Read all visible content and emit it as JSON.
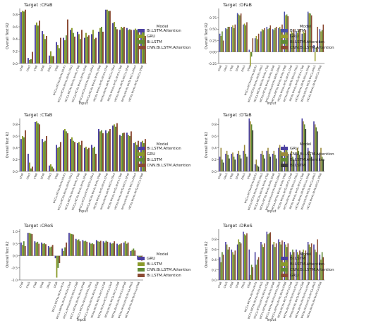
{
  "colors": {
    "c_bilstm_att": "#4a3fa0",
    "c_gru": "#8a9a2a",
    "c_bilstm": "#5f8a35",
    "c_cnn": "#8b4a33",
    "c_bilstm_dfab": "#4a50a8",
    "c_gru_dfab": "#9aa030",
    "c_cnn_dtab": "#9a8a3a",
    "c_att_dtab": "#5f8a35",
    "c_bilstm_dtab": "#3a3a3a"
  },
  "chart_data": [
    {
      "type": "bar",
      "title": "Target :CFaB",
      "ylabel": "Overall Test R2",
      "xlabel": "Input",
      "ylim": [
        0,
        0.9
      ],
      "yticks": [
        "0.0",
        "0.2",
        "0.4",
        "0.6",
        "0.8"
      ],
      "ytick_vals": [
        0.0,
        0.2,
        0.4,
        0.6,
        0.8
      ],
      "legend_title": "Model",
      "categories": [
        "CFaB",
        "CRoS",
        "CTaB",
        "DFaB",
        "DRoS",
        "DTaB",
        "WCCa,WCHa,WcHo,WcRs",
        "WCCa,WCHa,WcHo,WcRs,CRoS",
        "WCCa,WCHa,WcHo,WcRs,CTaB",
        "WCCa,WCHa,WcHo,WcRs,DFaB",
        "WCCa,WCHa,WcHo,WcRs,DRoS",
        "WCCa,WCHa,WcHo,WcRs,DTaB",
        "WCHa,WcHo,WcTa,WcCa,CFaB",
        "WCHa,WcHo,WcTa,WcCa,CRoS",
        "WCHa,WcHo,WcTa,WcCa,CTaB",
        "WCHa,WcHo,WcTa,WcCa,DFaB",
        "WCHa,WcHo,WcTa,WcCa,DRoS",
        "WCHa,WcHo,WcTa,WcCa,DTaB"
      ],
      "series": [
        {
          "name": "Bi.LSTM.Attention",
          "color": "#4a3fa0",
          "values": [
            0.84,
            0.09,
            0.63,
            0.53,
            0.13,
            0.35,
            0.42,
            0.55,
            0.52,
            0.42,
            0.48,
            0.52,
            0.88,
            0.66,
            0.55,
            0.58,
            0.55,
            0.55
          ]
        },
        {
          "name": "GRU",
          "color": "#8a9a2a",
          "values": [
            0.86,
            0.06,
            0.67,
            0.48,
            0.2,
            0.3,
            0.38,
            0.58,
            0.48,
            0.5,
            0.55,
            0.58,
            0.88,
            0.68,
            0.6,
            0.55,
            0.57,
            0.52
          ]
        },
        {
          "name": "Bi.LSTM",
          "color": "#5f8a35",
          "values": [
            0.85,
            0.07,
            0.62,
            0.4,
            0.12,
            0.25,
            0.46,
            0.5,
            0.4,
            0.44,
            0.4,
            0.6,
            0.86,
            0.6,
            0.58,
            0.56,
            0.55,
            0.52
          ]
        },
        {
          "name": "CNN.Bi.LSTM.Attention",
          "color": "#8b4a33",
          "values": [
            0.88,
            0.19,
            0.7,
            0.45,
            0.12,
            0.42,
            0.72,
            0.44,
            0.55,
            0.46,
            0.42,
            0.52,
            0.86,
            0.56,
            0.6,
            0.55,
            0.52,
            0.45
          ]
        }
      ]
    },
    {
      "type": "bar",
      "title": "Target :DFaB",
      "ylabel": "Overall Test R2",
      "xlabel": "Input",
      "ylim": [
        -0.25,
        0.95
      ],
      "yticks": [
        "-0.25",
        "0.00",
        "0.25",
        "0.50",
        "0.75"
      ],
      "ytick_vals": [
        -0.25,
        0.0,
        0.25,
        0.5,
        0.75
      ],
      "legend_title": "Model",
      "categories": [
        "CFaB",
        "CRoS",
        "CTaB",
        "DFaB",
        "DRoS",
        "DTaB",
        "WCCa,WCHa,WcHo,WcRs",
        "WCCa,WCHa,WcHo,WcRs,CRoS",
        "WCCa,WCHa,WcHo,WcRs,CTaB",
        "WCCa,WCHa,WcHo,WcRs,DFaB",
        "WCCa,WCHa,WcHo,WcRs,DRoS",
        "WCCa,WCHa,WcHo,WcRs,DTaB",
        "WCHa,WcHo,WcTa,WcCa,CFaB",
        "WCHa,WcHo,WcTa,WcCa,CRoS",
        "WCHa,WcHo,WcTa,WcCa,CTaB",
        "WCHa,WcHo,WcTa,WcCa,DFaB",
        "WCHa,WcHo,WcTa,WcCa,DRoS",
        "WCHa,WcHo,WcTa,WcCa,DTaB"
      ],
      "series": [
        {
          "name": "Bi.LSTM",
          "color": "#4a50a8",
          "values": [
            0.4,
            0.52,
            0.55,
            0.85,
            0.6,
            0.05,
            0.3,
            0.45,
            0.55,
            0.5,
            0.52,
            0.88,
            0.4,
            0.45,
            0.4,
            0.88,
            0.15,
            0.5
          ]
        },
        {
          "name": "GRU",
          "color": "#9aa030",
          "values": [
            0.35,
            0.5,
            0.58,
            0.82,
            0.62,
            -0.3,
            0.35,
            0.5,
            0.5,
            0.48,
            0.55,
            0.8,
            0.45,
            0.42,
            0.45,
            0.85,
            -0.2,
            0.45
          ]
        },
        {
          "name": "Bi.LSTM.Attention",
          "color": "#5f8a35",
          "values": [
            0.45,
            0.55,
            0.52,
            0.8,
            0.58,
            -0.1,
            0.28,
            0.48,
            0.52,
            0.52,
            0.5,
            0.82,
            0.42,
            0.48,
            0.42,
            0.84,
            0.1,
            0.48
          ]
        },
        {
          "name": "CNN.Bi.LSTM.Attention",
          "color": "#8b4a33",
          "values": [
            0.25,
            0.55,
            0.6,
            0.84,
            0.65,
            0.3,
            0.4,
            0.52,
            0.58,
            0.55,
            0.6,
            0.78,
            0.5,
            0.5,
            0.48,
            0.8,
            0.55,
            0.6
          ]
        }
      ]
    },
    {
      "type": "bar",
      "title": "Target :CTaB",
      "ylabel": "Overall Test R2",
      "xlabel": "Input",
      "ylim": [
        0,
        0.9
      ],
      "yticks": [
        "0.0",
        "0.2",
        "0.4",
        "0.6",
        "0.8"
      ],
      "ytick_vals": [
        0.0,
        0.2,
        0.4,
        0.6,
        0.8
      ],
      "legend_title": "Model",
      "categories": [
        "CFaB",
        "CRoS",
        "CTaB",
        "DFaB",
        "DRoS",
        "DTaB",
        "WCCa,WCHa,WcHo,WcRs",
        "WCCa,WCHa,WcHo,WcRs,CRoS",
        "WCCa,WCHa,WcHo,WcRs,CTaB",
        "WCCa,WCHa,WcHo,WcRs,DFaB",
        "WCCa,WCHa,WcHo,WcRs,DRoS",
        "WCCa,WCHa,WcHo,WcRs,DTaB",
        "WCHa,WcHo,WcTa,WcCa,CFaB",
        "WCHa,WcHo,WcTa,WcCa,CRoS",
        "WCHa,WcHo,WcTa,WcCa,CTaB",
        "WCHa,WcHo,WcTa,WcCa,DFaB",
        "WCHa,WcHo,WcTa,WcCa,DRoS",
        "WCHa,WcHo,WcTa,WcCa,DTaB"
      ],
      "series": [
        {
          "name": "Bi.LSTM.Attention",
          "color": "#4a3fa0",
          "values": [
            0.55,
            0.3,
            0.84,
            0.55,
            0.1,
            0.45,
            0.7,
            0.55,
            0.48,
            0.4,
            0.45,
            0.72,
            0.7,
            0.78,
            0.62,
            0.66,
            0.48,
            0.5
          ]
        },
        {
          "name": "GRU",
          "color": "#8a9a2a",
          "values": [
            0.6,
            0.15,
            0.85,
            0.5,
            0.12,
            0.4,
            0.72,
            0.58,
            0.5,
            0.42,
            0.4,
            0.68,
            0.65,
            0.8,
            0.6,
            0.62,
            0.5,
            0.52
          ]
        },
        {
          "name": "Bi.LSTM",
          "color": "#5f8a35",
          "values": [
            0.58,
            0.05,
            0.82,
            0.52,
            0.08,
            0.42,
            0.68,
            0.52,
            0.45,
            0.38,
            0.42,
            0.7,
            0.68,
            0.76,
            0.65,
            0.6,
            0.45,
            0.48
          ]
        },
        {
          "name": "CNN.Bi.LSTM.Attention",
          "color": "#8b4a33",
          "values": [
            0.7,
            0.08,
            0.8,
            0.6,
            0.05,
            0.5,
            0.65,
            0.5,
            0.52,
            0.4,
            0.3,
            0.65,
            0.72,
            0.82,
            0.66,
            0.68,
            0.52,
            0.55
          ]
        }
      ]
    },
    {
      "type": "bar",
      "title": "Target :DTaB",
      "ylabel": "Overall Test R2",
      "xlabel": "Input",
      "ylim": [
        0,
        0.9
      ],
      "yticks": [
        "0.0",
        "0.2",
        "0.4",
        "0.6",
        "0.8"
      ],
      "ytick_vals": [
        0.0,
        0.2,
        0.4,
        0.6,
        0.8
      ],
      "legend_title": "Model",
      "categories": [
        "CFaB",
        "CRoS",
        "CTaB",
        "DFaB",
        "DRoS",
        "DTaB",
        "WCCa,WCHa,WcHo,WcRs",
        "WCCa,WCHa,WcHo,WcRs,CRoS",
        "WCCa,WCHa,WcHo,WcRs,CTaB",
        "WCCa,WCHa,WcHo,WcRs,DFaB",
        "WCCa,WCHa,WcHo,WcRs,DRoS",
        "WCCa,WCHa,WcHo,WcRs,DTaB",
        "WCHa,WcHo,WcTa,WcCa,CFaB",
        "WCHa,WcHo,WcTa,WcCa,CRoS",
        "WCHa,WcHo,WcTa,WcCa,CTaB",
        "WCHa,WcHo,WcTa,WcCa,DFaB",
        "WCHa,WcHo,WcTa,WcCa,DRoS",
        "WCHa,WcHo,WcTa,WcCa,DTaB"
      ],
      "series": [
        {
          "name": "GRU",
          "color": "#4a3fa0",
          "values": [
            0.25,
            0.3,
            0.3,
            0.3,
            0.35,
            0.9,
            0.12,
            0.3,
            0.35,
            0.3,
            0.4,
            0.45,
            0.3,
            0.3,
            0.9,
            0.4,
            0.85,
            0.3
          ]
        },
        {
          "name": "CNN.Bi.LSTM.Attention",
          "color": "#9a8a3a",
          "values": [
            0.4,
            0.35,
            0.32,
            0.35,
            0.45,
            0.85,
            0.2,
            0.35,
            0.4,
            0.35,
            0.45,
            0.4,
            0.35,
            0.4,
            0.85,
            0.35,
            0.8,
            0.4
          ]
        },
        {
          "name": "Bi.LSTM.Attention",
          "color": "#5f8a35",
          "values": [
            0.2,
            0.28,
            0.25,
            0.28,
            0.3,
            0.8,
            0.1,
            0.28,
            0.3,
            0.28,
            0.35,
            0.38,
            0.25,
            0.35,
            0.8,
            0.3,
            0.75,
            0.25
          ]
        },
        {
          "name": "Bi.LSTM",
          "color": "#3a3a3a",
          "values": [
            0.15,
            0.22,
            0.2,
            0.22,
            0.25,
            0.7,
            0.08,
            0.22,
            0.25,
            0.22,
            0.3,
            0.3,
            0.2,
            0.28,
            0.72,
            0.25,
            0.68,
            0.2
          ]
        }
      ]
    },
    {
      "type": "bar",
      "title": "Target :CRoS",
      "ylabel": "Overall Test R2",
      "xlabel": "Input",
      "ylim": [
        -1.0,
        1.1
      ],
      "yticks": [
        "-1.0",
        "-0.5",
        "0.0",
        "0.5",
        "1.0"
      ],
      "ytick_vals": [
        -1.0,
        -0.5,
        0.0,
        0.5,
        1.0
      ],
      "legend_title": "Model",
      "categories": [
        "CFaB",
        "CRoS",
        "CTaB",
        "DFaB",
        "DRoS",
        "DTaB",
        "WCCa,WCHa,WcHo,WcRs",
        "WCCa,WCHa,WcHo,WcRs,CRoS",
        "WCCa,WCHa,WcHo,WcRs,CTaB",
        "WCCa,WCHa,WcHo,WcRs,DFaB",
        "WCCa,WCHa,WcHo,WcRs,DRoS",
        "WCCa,WCHa,WcHo,WcRs,DTaB",
        "WCHa,WcHo,WcTa,WcCa,CFaB",
        "WCHa,WcHo,WcTa,WcCa,CRoS",
        "WCHa,WcHo,WcTa,WcCa,CTaB",
        "WCHa,WcHo,WcTa,WcCa,DFaB",
        "WCHa,WcHo,WcTa,WcCa,DRoS",
        "WCHa,WcHo,WcTa,WcCa,DTaB"
      ],
      "series": [
        {
          "name": "GRU",
          "color": "#4a3fa0",
          "values": [
            0.55,
            0.95,
            0.6,
            0.55,
            0.4,
            -0.1,
            0.3,
            0.95,
            0.7,
            0.65,
            0.55,
            0.65,
            0.6,
            0.55,
            0.5,
            0.55,
            0.2,
            -0.15
          ]
        },
        {
          "name": "Bi.LSTM",
          "color": "#8a9a2a",
          "values": [
            0.45,
            0.95,
            0.55,
            0.5,
            0.35,
            -0.9,
            0.2,
            0.92,
            0.65,
            0.6,
            0.5,
            0.6,
            0.55,
            0.5,
            0.45,
            0.6,
            0.25,
            -0.1
          ]
        },
        {
          "name": "CNN.Bi.LSTM.Attention",
          "color": "#5f8a35",
          "values": [
            0.6,
            0.92,
            0.58,
            0.52,
            0.38,
            -0.5,
            0.35,
            0.9,
            0.68,
            0.62,
            0.52,
            0.58,
            0.62,
            0.52,
            0.48,
            0.5,
            0.3,
            -0.12
          ]
        },
        {
          "name": "Bi.LSTM.Attention",
          "color": "#8b4a33",
          "values": [
            0.4,
            0.9,
            0.5,
            0.48,
            0.45,
            -0.3,
            0.55,
            0.88,
            0.6,
            0.58,
            0.48,
            0.62,
            0.58,
            0.6,
            0.52,
            0.55,
            0.22,
            -0.2
          ]
        }
      ]
    },
    {
      "type": "bar",
      "title": "Target :DRoS",
      "ylabel": "Overall Test R2",
      "xlabel": "Input",
      "ylim": [
        0,
        1.0
      ],
      "yticks": [
        "0.0",
        "0.2",
        "0.4",
        "0.6",
        "0.8"
      ],
      "ytick_vals": [
        0.0,
        0.2,
        0.4,
        0.6,
        0.8
      ],
      "legend_title": "Model",
      "categories": [
        "CFaB",
        "CRoS",
        "CTaB",
        "DFaB",
        "DRoS",
        "DTaB",
        "WCCa,WCHa,WcHo,WcRs",
        "WCCa,WCHa,WcHo,WcRs,CRoS",
        "WCCa,WCHa,WcHo,WcRs,CTaB",
        "WCCa,WCHa,WcHo,WcRs,DFaB",
        "WCCa,WCHa,WcHo,WcRs,DRoS",
        "WCCa,WCHa,WcHo,WcRs,DTaB",
        "WCHa,WcHo,WcTa,WcCa,CFaB",
        "WCHa,WcHo,WcTa,WcCa,CRoS",
        "WCHa,WcHo,WcTa,WcCa,CTaB",
        "WCHa,WcHo,WcTa,WcCa,DFaB",
        "WCHa,WcHo,WcTa,WcCa,DRoS",
        "WCHa,WcHo,WcTa,WcCa,DTaB"
      ],
      "series": [
        {
          "name": "Bi.LSTM",
          "color": "#4a3fa0",
          "values": [
            0.45,
            0.75,
            0.6,
            0.7,
            0.95,
            0.6,
            0.55,
            0.75,
            0.95,
            0.7,
            0.8,
            0.75,
            0.55,
            0.6,
            0.55,
            0.75,
            0.7,
            0.5
          ]
        },
        {
          "name": "Bi.LSTM.Attention",
          "color": "#8a9a2a",
          "values": [
            0.35,
            0.7,
            0.55,
            0.8,
            0.9,
            0.1,
            0.3,
            0.7,
            0.9,
            0.75,
            0.75,
            0.7,
            0.5,
            0.55,
            0.6,
            0.7,
            0.6,
            0.4
          ]
        },
        {
          "name": "CNN.Bi.LSTM.Attention",
          "color": "#5f8a35",
          "values": [
            0.55,
            0.6,
            0.5,
            0.75,
            0.88,
            0.3,
            0.4,
            0.65,
            0.92,
            0.65,
            0.7,
            0.65,
            0.6,
            0.5,
            0.5,
            0.65,
            0.55,
            0.55
          ]
        },
        {
          "name": "GRU",
          "color": "#8b4a33",
          "values": [
            0.5,
            0.65,
            0.58,
            0.72,
            0.92,
            0.25,
            0.45,
            0.72,
            0.94,
            0.72,
            0.78,
            0.72,
            0.55,
            0.58,
            0.58,
            0.72,
            0.8,
            0.45
          ]
        }
      ]
    }
  ]
}
